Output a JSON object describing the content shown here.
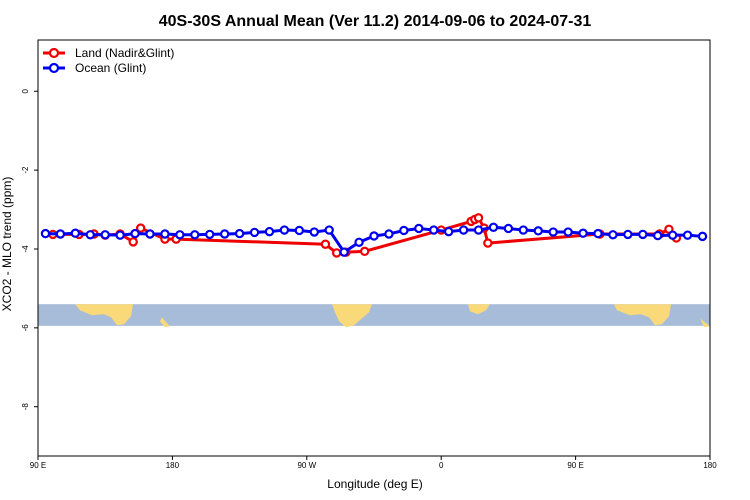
{
  "chart_data": {
    "type": "line",
    "title": "40S-30S Annual Mean (Ver 11.2)   2014-09-06 to 2024-07-31",
    "xlabel": "Longitude (deg E)",
    "ylabel": "XCO2 - MLO trend (ppm)",
    "xlim": [
      90,
      450
    ],
    "ylim": [
      -9.25,
      1.3
    ],
    "x_ticks": [
      {
        "value": 90,
        "label": "90 E"
      },
      {
        "value": 162,
        "label": "180"
      },
      {
        "value": 234,
        "label": "90 W"
      },
      {
        "value": 306,
        "label": "0"
      },
      {
        "value": 378,
        "label": "90 E"
      },
      {
        "value": 450,
        "label": "180"
      }
    ],
    "y_ticks": [
      {
        "value": 0,
        "label": "0"
      },
      {
        "value": -2,
        "label": "-2"
      },
      {
        "value": -4,
        "label": "-4"
      },
      {
        "value": -6,
        "label": "-6"
      },
      {
        "value": -8,
        "label": "-8"
      }
    ],
    "legend_position": "top-left",
    "map_strip": {
      "y_top": -5.4,
      "y_bottom": -5.95,
      "ocean_color": "#a7bcd9",
      "land_color": "#fad97a"
    },
    "series": [
      {
        "name": "Land (Nadir&Glint)",
        "color": "#ee0000",
        "x": [
          98,
          112,
          120,
          126,
          134,
          141,
          145,
          158,
          164,
          244,
          250,
          255,
          265,
          306,
          322,
          324,
          326,
          329,
          331,
          391,
          423,
          428,
          432
        ],
        "values": [
          -3.63,
          -3.63,
          -3.62,
          -3.65,
          -3.62,
          -3.82,
          -3.47,
          -3.75,
          -3.75,
          -3.88,
          -4.1,
          -4.08,
          -4.06,
          -3.52,
          -3.3,
          -3.25,
          -3.21,
          -3.47,
          -3.85,
          -3.62,
          -3.62,
          -3.5,
          -3.72
        ]
      },
      {
        "name": "Ocean (Glint)",
        "color": "#0000ee",
        "x": [
          94,
          102,
          110,
          118,
          126,
          134,
          142,
          150,
          158,
          166,
          174,
          182,
          190,
          198,
          206,
          214,
          222,
          230,
          238,
          246,
          254,
          262,
          270,
          278,
          286,
          294,
          302,
          310,
          318,
          326,
          334,
          342,
          350,
          358,
          366,
          374,
          382,
          390,
          398,
          406,
          414,
          422,
          430,
          438,
          446
        ],
        "values": [
          -3.61,
          -3.62,
          -3.6,
          -3.64,
          -3.64,
          -3.65,
          -3.61,
          -3.62,
          -3.62,
          -3.64,
          -3.64,
          -3.63,
          -3.62,
          -3.61,
          -3.58,
          -3.56,
          -3.52,
          -3.53,
          -3.57,
          -3.52,
          -4.08,
          -3.83,
          -3.67,
          -3.62,
          -3.53,
          -3.48,
          -3.52,
          -3.56,
          -3.52,
          -3.52,
          -3.45,
          -3.48,
          -3.52,
          -3.54,
          -3.57,
          -3.57,
          -3.6,
          -3.61,
          -3.64,
          -3.63,
          -3.63,
          -3.66,
          -3.65,
          -3.65,
          -3.68
        ]
      }
    ]
  }
}
